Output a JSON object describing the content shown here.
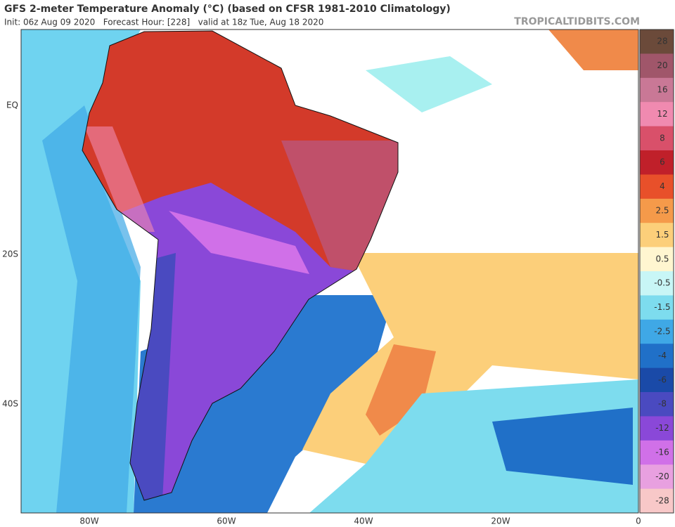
{
  "header": {
    "title": "GFS 2-meter Temperature Anomaly (°C) (based on CFSR 1981-2010 Climatology)",
    "subtitle": "Init: 06z Aug 09 2020   Forecast Hour: [228]   valid at 18z Tue, Aug 18 2020",
    "watermark": "TROPICALTIDBITS.COM"
  },
  "map": {
    "lat_labels": [
      "EQ",
      "20S",
      "40S"
    ],
    "lon_labels": [
      "80W",
      "60W",
      "40W",
      "20W",
      "0"
    ]
  },
  "colorbar": {
    "labels": [
      28,
      20,
      16,
      12,
      8,
      6,
      4,
      2.5,
      1.5,
      0.5,
      -0.5,
      -1.5,
      -2.5,
      -4,
      -6,
      -8,
      -12,
      -16,
      -20,
      -28
    ],
    "colors": [
      "#6b4a3a",
      "#a0566a",
      "#c97896",
      "#f08ab0",
      "#d9506a",
      "#c0202a",
      "#e8502a",
      "#f59a4a",
      "#fccf7a",
      "#fff6d0",
      "#c8f6f6",
      "#7ddcee",
      "#3fa8e6",
      "#2070c8",
      "#1a4aa8",
      "#4a4ac0",
      "#8a48d8",
      "#d070e8",
      "#e8a0e0",
      "#f8c8c8"
    ]
  }
}
